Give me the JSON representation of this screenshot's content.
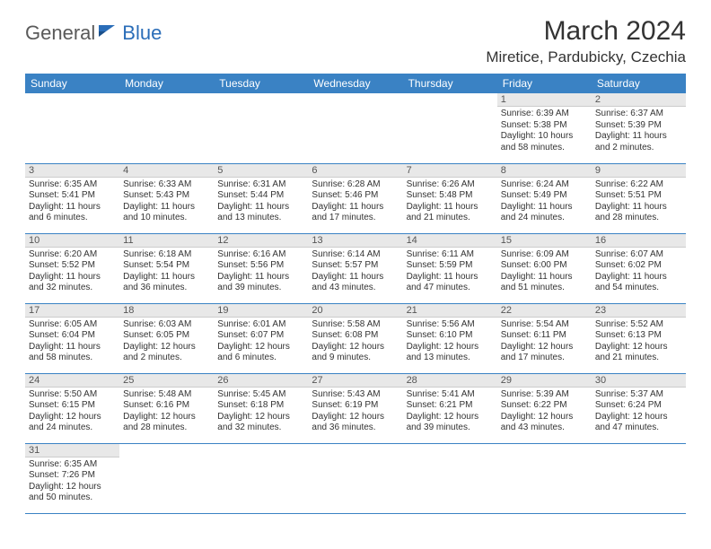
{
  "brand": {
    "part1": "General",
    "part2": "Blue"
  },
  "title": "March 2024",
  "location": "Miretice, Pardubicky, Czechia",
  "colors": {
    "header_bg": "#3a82c4",
    "header_text": "#ffffff",
    "daynum_bg": "#e8e8e8",
    "rule": "#3a82c4",
    "brand_gray": "#5a5a5a",
    "brand_blue": "#2a6db8"
  },
  "weekdays": [
    "Sunday",
    "Monday",
    "Tuesday",
    "Wednesday",
    "Thursday",
    "Friday",
    "Saturday"
  ],
  "grid": [
    [
      null,
      null,
      null,
      null,
      null,
      {
        "n": "1",
        "sr": "Sunrise: 6:39 AM",
        "ss": "Sunset: 5:38 PM",
        "dl": "Daylight: 10 hours and 58 minutes."
      },
      {
        "n": "2",
        "sr": "Sunrise: 6:37 AM",
        "ss": "Sunset: 5:39 PM",
        "dl": "Daylight: 11 hours and 2 minutes."
      }
    ],
    [
      {
        "n": "3",
        "sr": "Sunrise: 6:35 AM",
        "ss": "Sunset: 5:41 PM",
        "dl": "Daylight: 11 hours and 6 minutes."
      },
      {
        "n": "4",
        "sr": "Sunrise: 6:33 AM",
        "ss": "Sunset: 5:43 PM",
        "dl": "Daylight: 11 hours and 10 minutes."
      },
      {
        "n": "5",
        "sr": "Sunrise: 6:31 AM",
        "ss": "Sunset: 5:44 PM",
        "dl": "Daylight: 11 hours and 13 minutes."
      },
      {
        "n": "6",
        "sr": "Sunrise: 6:28 AM",
        "ss": "Sunset: 5:46 PM",
        "dl": "Daylight: 11 hours and 17 minutes."
      },
      {
        "n": "7",
        "sr": "Sunrise: 6:26 AM",
        "ss": "Sunset: 5:48 PM",
        "dl": "Daylight: 11 hours and 21 minutes."
      },
      {
        "n": "8",
        "sr": "Sunrise: 6:24 AM",
        "ss": "Sunset: 5:49 PM",
        "dl": "Daylight: 11 hours and 24 minutes."
      },
      {
        "n": "9",
        "sr": "Sunrise: 6:22 AM",
        "ss": "Sunset: 5:51 PM",
        "dl": "Daylight: 11 hours and 28 minutes."
      }
    ],
    [
      {
        "n": "10",
        "sr": "Sunrise: 6:20 AM",
        "ss": "Sunset: 5:52 PM",
        "dl": "Daylight: 11 hours and 32 minutes."
      },
      {
        "n": "11",
        "sr": "Sunrise: 6:18 AM",
        "ss": "Sunset: 5:54 PM",
        "dl": "Daylight: 11 hours and 36 minutes."
      },
      {
        "n": "12",
        "sr": "Sunrise: 6:16 AM",
        "ss": "Sunset: 5:56 PM",
        "dl": "Daylight: 11 hours and 39 minutes."
      },
      {
        "n": "13",
        "sr": "Sunrise: 6:14 AM",
        "ss": "Sunset: 5:57 PM",
        "dl": "Daylight: 11 hours and 43 minutes."
      },
      {
        "n": "14",
        "sr": "Sunrise: 6:11 AM",
        "ss": "Sunset: 5:59 PM",
        "dl": "Daylight: 11 hours and 47 minutes."
      },
      {
        "n": "15",
        "sr": "Sunrise: 6:09 AM",
        "ss": "Sunset: 6:00 PM",
        "dl": "Daylight: 11 hours and 51 minutes."
      },
      {
        "n": "16",
        "sr": "Sunrise: 6:07 AM",
        "ss": "Sunset: 6:02 PM",
        "dl": "Daylight: 11 hours and 54 minutes."
      }
    ],
    [
      {
        "n": "17",
        "sr": "Sunrise: 6:05 AM",
        "ss": "Sunset: 6:04 PM",
        "dl": "Daylight: 11 hours and 58 minutes."
      },
      {
        "n": "18",
        "sr": "Sunrise: 6:03 AM",
        "ss": "Sunset: 6:05 PM",
        "dl": "Daylight: 12 hours and 2 minutes."
      },
      {
        "n": "19",
        "sr": "Sunrise: 6:01 AM",
        "ss": "Sunset: 6:07 PM",
        "dl": "Daylight: 12 hours and 6 minutes."
      },
      {
        "n": "20",
        "sr": "Sunrise: 5:58 AM",
        "ss": "Sunset: 6:08 PM",
        "dl": "Daylight: 12 hours and 9 minutes."
      },
      {
        "n": "21",
        "sr": "Sunrise: 5:56 AM",
        "ss": "Sunset: 6:10 PM",
        "dl": "Daylight: 12 hours and 13 minutes."
      },
      {
        "n": "22",
        "sr": "Sunrise: 5:54 AM",
        "ss": "Sunset: 6:11 PM",
        "dl": "Daylight: 12 hours and 17 minutes."
      },
      {
        "n": "23",
        "sr": "Sunrise: 5:52 AM",
        "ss": "Sunset: 6:13 PM",
        "dl": "Daylight: 12 hours and 21 minutes."
      }
    ],
    [
      {
        "n": "24",
        "sr": "Sunrise: 5:50 AM",
        "ss": "Sunset: 6:15 PM",
        "dl": "Daylight: 12 hours and 24 minutes."
      },
      {
        "n": "25",
        "sr": "Sunrise: 5:48 AM",
        "ss": "Sunset: 6:16 PM",
        "dl": "Daylight: 12 hours and 28 minutes."
      },
      {
        "n": "26",
        "sr": "Sunrise: 5:45 AM",
        "ss": "Sunset: 6:18 PM",
        "dl": "Daylight: 12 hours and 32 minutes."
      },
      {
        "n": "27",
        "sr": "Sunrise: 5:43 AM",
        "ss": "Sunset: 6:19 PM",
        "dl": "Daylight: 12 hours and 36 minutes."
      },
      {
        "n": "28",
        "sr": "Sunrise: 5:41 AM",
        "ss": "Sunset: 6:21 PM",
        "dl": "Daylight: 12 hours and 39 minutes."
      },
      {
        "n": "29",
        "sr": "Sunrise: 5:39 AM",
        "ss": "Sunset: 6:22 PM",
        "dl": "Daylight: 12 hours and 43 minutes."
      },
      {
        "n": "30",
        "sr": "Sunrise: 5:37 AM",
        "ss": "Sunset: 6:24 PM",
        "dl": "Daylight: 12 hours and 47 minutes."
      }
    ],
    [
      {
        "n": "31",
        "sr": "Sunrise: 6:35 AM",
        "ss": "Sunset: 7:26 PM",
        "dl": "Daylight: 12 hours and 50 minutes."
      },
      null,
      null,
      null,
      null,
      null,
      null
    ]
  ]
}
